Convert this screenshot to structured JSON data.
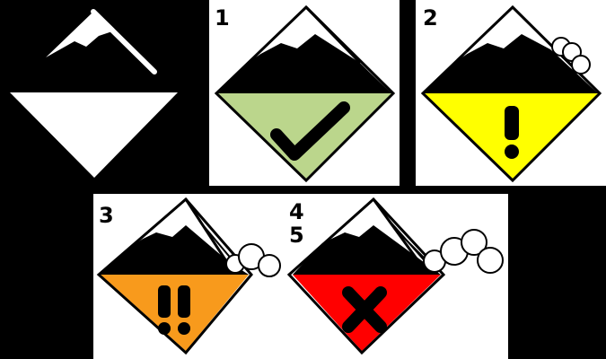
{
  "icons": {
    "generic": {
      "bottom_color": "#ffffff",
      "symbol": "none"
    },
    "level_1": {
      "label": "1",
      "bottom_color": "#bbd68c",
      "symbol": "checkmark-icon"
    },
    "level_2": {
      "label": "2",
      "bottom_color": "#ffff00",
      "symbol": "exclamation-icon"
    },
    "level_3": {
      "label": "3",
      "bottom_color": "#f89a1c",
      "symbol": "double-exclamation-icon"
    },
    "level_4_5": {
      "label_top": "4",
      "label_bottom": "5",
      "bottom_color": "#ff0000",
      "symbol": "cross-icon"
    }
  }
}
